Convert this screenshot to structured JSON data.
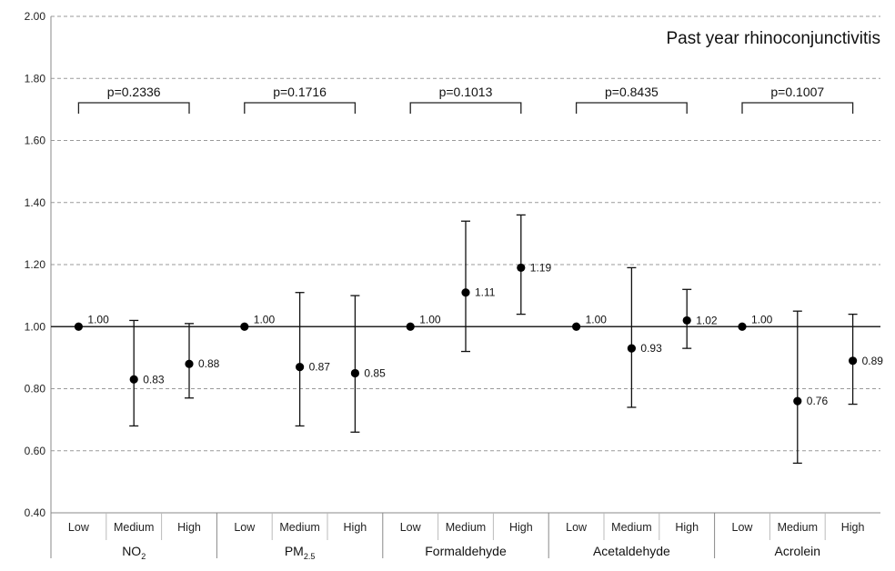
{
  "chart_data": {
    "type": "scatter",
    "title": "Past year rhinoconjunctivitis",
    "ylim": [
      0.4,
      2.0
    ],
    "yticks": [
      "0.40",
      "0.60",
      "0.80",
      "1.00",
      "1.20",
      "1.40",
      "1.60",
      "1.80",
      "2.00"
    ],
    "grid": true,
    "reference_line": 1.0,
    "groups": [
      {
        "name": "NO",
        "sub": "2",
        "p_value": "p=0.2336",
        "points": [
          {
            "category": "Low",
            "value": 1.0,
            "lower": 1.0,
            "upper": 1.0,
            "label": "1.00"
          },
          {
            "category": "Medium",
            "value": 0.83,
            "lower": 0.68,
            "upper": 1.02,
            "label": "0.83"
          },
          {
            "category": "High",
            "value": 0.88,
            "lower": 0.77,
            "upper": 1.01,
            "label": "0.88"
          }
        ]
      },
      {
        "name": "PM",
        "sub": "2.5",
        "p_value": "p=0.1716",
        "points": [
          {
            "category": "Low",
            "value": 1.0,
            "lower": 1.0,
            "upper": 1.0,
            "label": "1.00"
          },
          {
            "category": "Medium",
            "value": 0.87,
            "lower": 0.68,
            "upper": 1.11,
            "label": "0.87"
          },
          {
            "category": "High",
            "value": 0.85,
            "lower": 0.66,
            "upper": 1.1,
            "label": "0.85"
          }
        ]
      },
      {
        "name": "Formaldehyde",
        "sub": "",
        "p_value": "p=0.1013",
        "points": [
          {
            "category": "Low",
            "value": 1.0,
            "lower": 1.0,
            "upper": 1.0,
            "label": "1.00"
          },
          {
            "category": "Medium",
            "value": 1.11,
            "lower": 0.92,
            "upper": 1.34,
            "label": "1.11"
          },
          {
            "category": "High",
            "value": 1.19,
            "lower": 1.04,
            "upper": 1.36,
            "label": "1.19"
          }
        ]
      },
      {
        "name": "Acetaldehyde",
        "sub": "",
        "p_value": "p=0.8435",
        "points": [
          {
            "category": "Low",
            "value": 1.0,
            "lower": 1.0,
            "upper": 1.0,
            "label": "1.00"
          },
          {
            "category": "Medium",
            "value": 0.93,
            "lower": 0.74,
            "upper": 1.19,
            "label": "0.93"
          },
          {
            "category": "High",
            "value": 1.02,
            "lower": 0.93,
            "upper": 1.12,
            "label": "1.02"
          }
        ]
      },
      {
        "name": "Acrolein",
        "sub": "",
        "p_value": "p=0.1007",
        "points": [
          {
            "category": "Low",
            "value": 1.0,
            "lower": 1.0,
            "upper": 1.0,
            "label": "1.00"
          },
          {
            "category": "Medium",
            "value": 0.76,
            "lower": 0.56,
            "upper": 1.05,
            "label": "0.76"
          },
          {
            "category": "High",
            "value": 0.89,
            "lower": 0.75,
            "upper": 1.04,
            "label": "0.89"
          }
        ]
      }
    ]
  }
}
